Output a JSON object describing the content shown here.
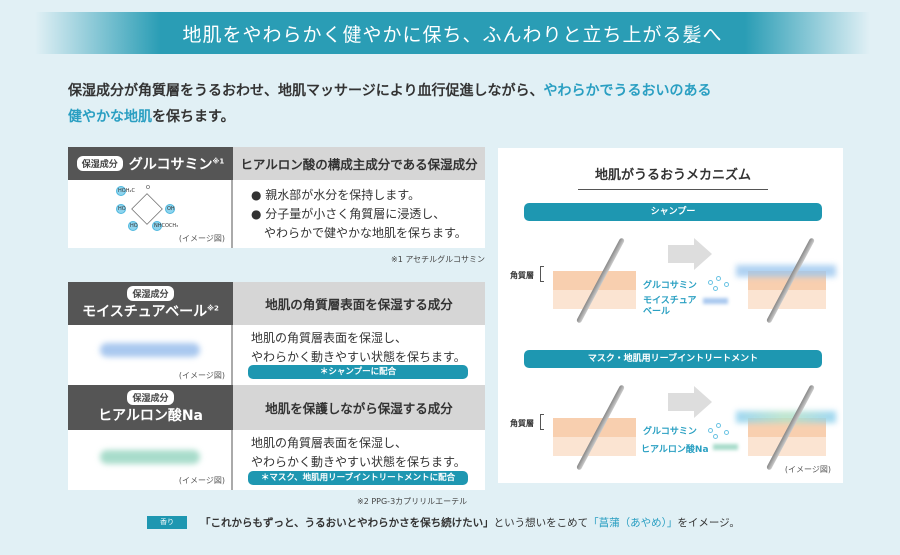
{
  "banner": {
    "title": "地肌をやわらかく健やかに保ち、ふんわりと立ち上がる髪へ"
  },
  "intro": {
    "part1": "保湿成分が角質層をうるおわせ、地肌マッサージにより血行促進しながら、",
    "highlight1": "やわらかでうるおいのある",
    "highlight2": "健やかな地肌",
    "part2": "を保ちます。"
  },
  "ingredients": [
    {
      "tag": "保湿成分",
      "name": "グルコサミン",
      "mark": "※1",
      "role": "ヒアルロン酸の構成主成分である保湿成分",
      "bullets": [
        "親水部が水分を保持します。",
        "分子量が小さく角質層に浸透し、",
        "やわらかで健やかな地肌を保ちます。"
      ],
      "image_note": "(イメージ図)",
      "footnote": "※1 アセチルグルコサミン",
      "molecule": [
        "HOH₂C",
        "O",
        "HO",
        "OH",
        "HO",
        "NHCOCH₃"
      ]
    },
    {
      "tag": "保湿成分",
      "name": "モイスチュアベール",
      "mark": "※2",
      "role": "地肌の角質層表面を保湿する成分",
      "desc": [
        "地肌の角質層表面を保湿し、",
        "やわらかく動きやすい状態を保ちます。"
      ],
      "pill": "＊シャンプーに配合",
      "image_note": "(イメージ図)",
      "color": "#a9c8ef"
    },
    {
      "tag": "保湿成分",
      "name": "ヒアルロン酸Na",
      "role": "地肌を保護しながら保湿する成分",
      "desc": [
        "地肌の角質層表面を保湿し、",
        "やわらかく動きやすい状態を保ちます。"
      ],
      "pill": "＊マスク、地肌用リーブイントリートメントに配合",
      "image_note": "(イメージ図)",
      "footnote": "※2 PPG-3カプリリルエーテル",
      "color": "#a8dccb"
    }
  ],
  "mechanism": {
    "title": "地肌がうるおうメカニズム",
    "sections": [
      {
        "label": "シャンプー",
        "layer": "角質層",
        "ing1": "グルコサミン",
        "ing2": "モイスチュア\nベール"
      },
      {
        "label": "マスク・地肌用リーブイントリートメント",
        "layer": "角質層",
        "ing1": "グルコサミン",
        "ing2": "ヒアルロン酸Na"
      }
    ],
    "image_note": "(イメージ図)"
  },
  "scent": {
    "tag": "香り",
    "quote": "「これからもずっと、うるおいとやわらかさを保ち続けたい」",
    "mid": "という想いをこめて",
    "name": "「菖蒲（あやめ）」",
    "end": "をイメージ。"
  },
  "colors": {
    "accent": "#1e97b1",
    "background": "#e1f0f5",
    "dark": "#555555"
  }
}
